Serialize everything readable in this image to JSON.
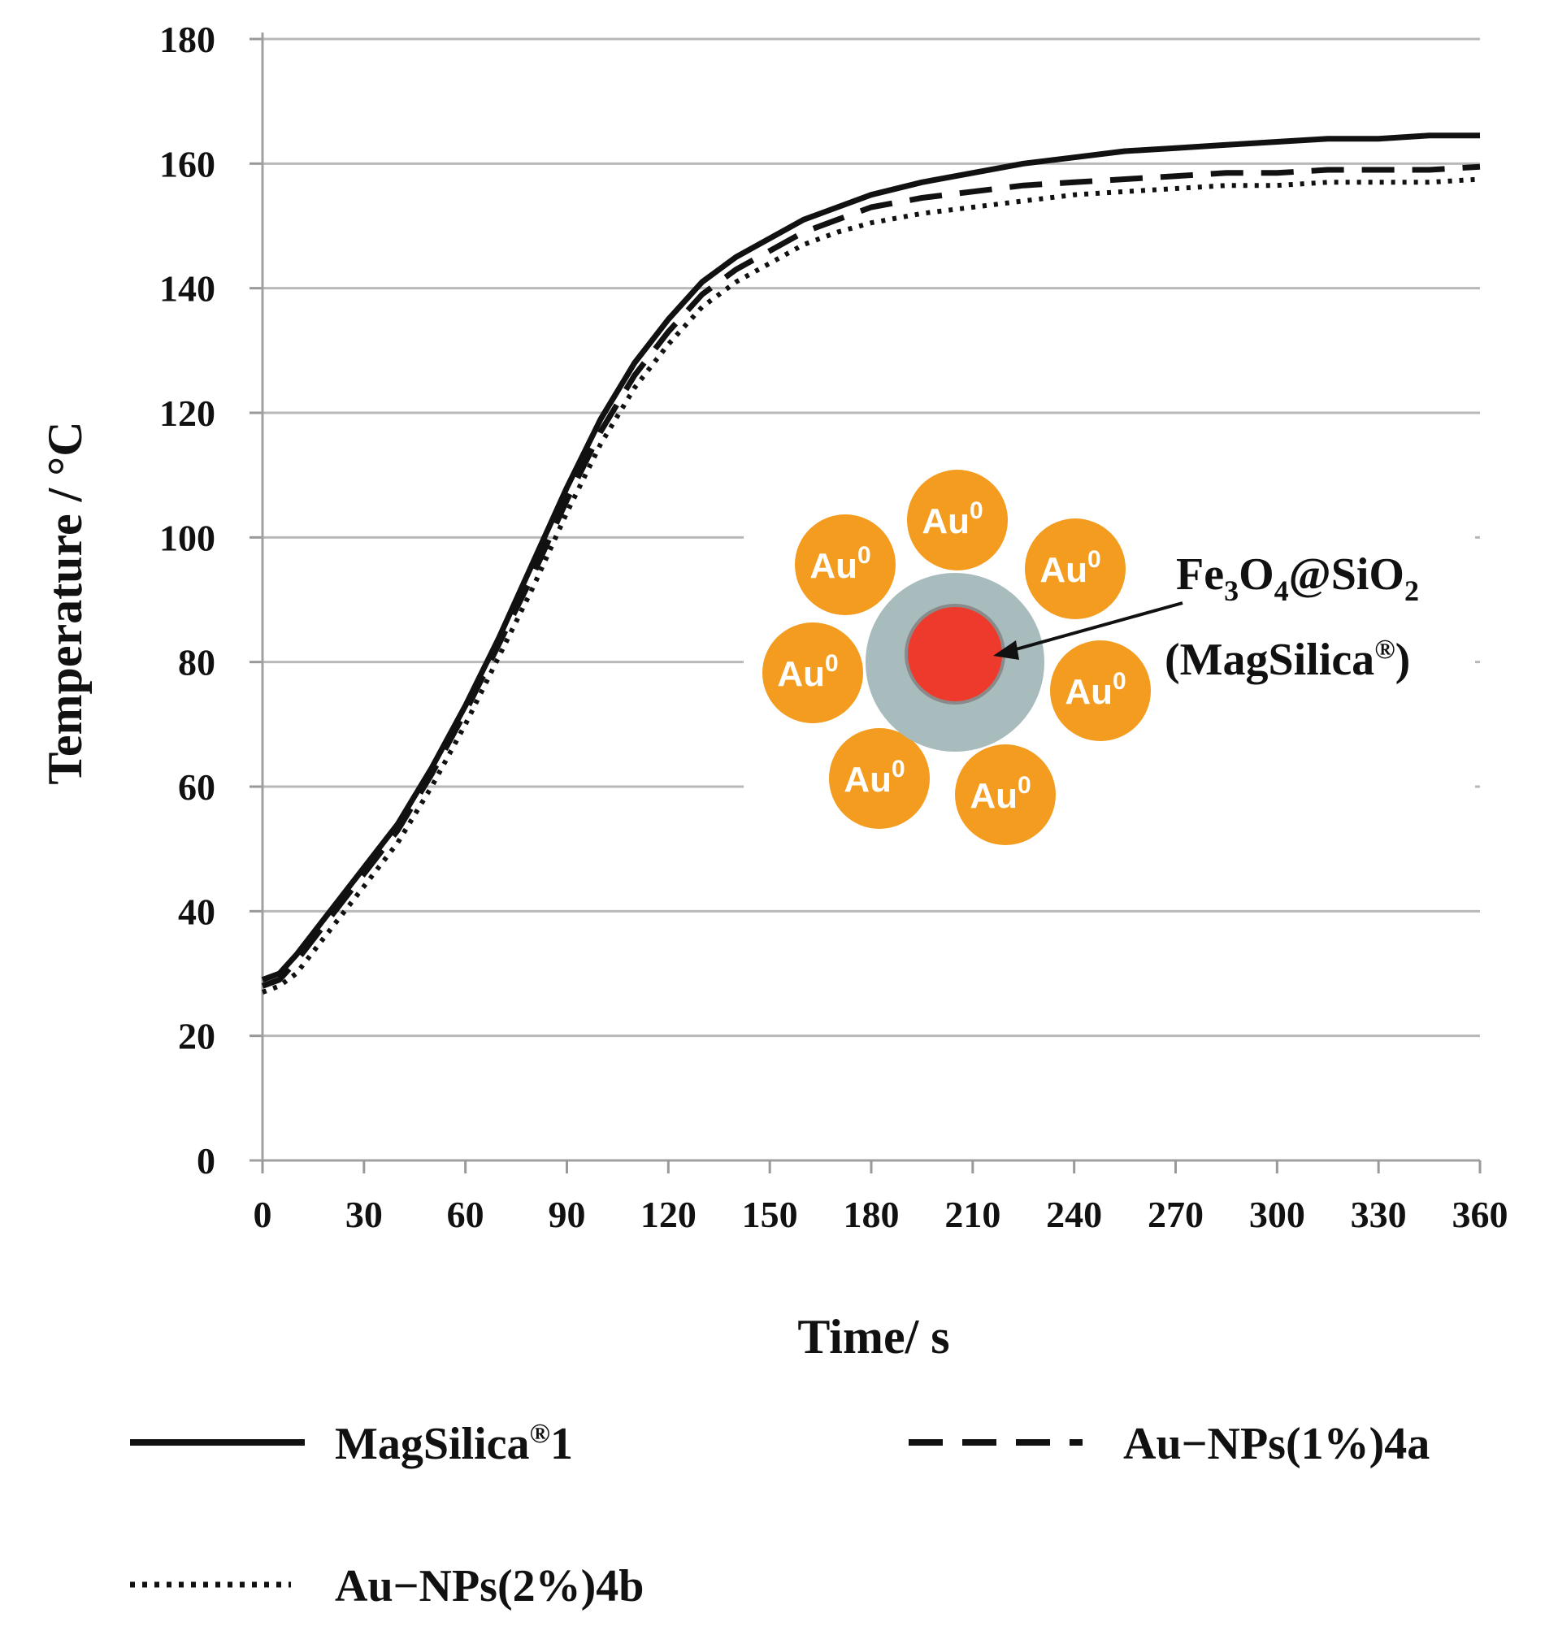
{
  "chart_data": {
    "type": "line",
    "title": "",
    "xlabel": "Time/ s",
    "ylabel": "Temperature / °C",
    "xlim": [
      0,
      360
    ],
    "ylim": [
      0,
      180
    ],
    "x_ticks": [
      0,
      30,
      60,
      90,
      120,
      150,
      180,
      210,
      240,
      270,
      300,
      330,
      360
    ],
    "y_ticks": [
      0,
      20,
      40,
      60,
      80,
      100,
      120,
      140,
      160,
      180
    ],
    "grid": "horizontal",
    "x": [
      0,
      5,
      10,
      20,
      30,
      40,
      50,
      60,
      70,
      80,
      90,
      100,
      110,
      120,
      130,
      140,
      150,
      160,
      170,
      180,
      195,
      210,
      225,
      240,
      255,
      270,
      285,
      300,
      315,
      330,
      345,
      360
    ],
    "series": [
      {
        "name": "MagSilica®1",
        "style": "solid",
        "values": [
          29,
          30,
          33,
          40,
          47,
          54,
          63,
          73,
          84,
          96,
          108,
          119,
          128,
          135,
          141,
          145,
          148,
          151,
          153,
          155,
          157,
          158.5,
          160,
          161,
          162,
          162.5,
          163,
          163.5,
          164,
          164,
          164.5,
          164.5
        ]
      },
      {
        "name": "Au−NPs(1%)4a",
        "style": "dashed",
        "values": [
          28,
          29,
          32,
          39,
          46,
          53,
          62,
          72,
          83,
          94,
          106,
          117,
          126,
          133,
          139,
          143,
          146,
          149,
          151,
          153,
          154.5,
          155.5,
          156.5,
          157,
          157.5,
          158,
          158.5,
          158.5,
          159,
          159,
          159,
          159.5
        ]
      },
      {
        "name": "Au−NPs(2%)4b",
        "style": "dotted",
        "values": [
          27,
          28,
          30,
          37,
          44,
          51,
          60,
          70,
          81,
          92,
          104,
          115,
          124,
          131,
          137,
          141,
          144,
          147,
          149,
          150.5,
          152,
          153,
          154,
          155,
          155.5,
          156,
          156.5,
          156.5,
          157,
          157,
          157,
          157.5
        ]
      }
    ],
    "legend_position": "bottom"
  },
  "inset": {
    "np_label": "Au",
    "np_superscript": "0",
    "core_label_main": "Fe",
    "core_sub1": "3",
    "core_o": "O",
    "core_sub2": "4",
    "core_at": "@SiO",
    "core_sub3": "2",
    "core_label_line2": "(MagSilica",
    "core_label_reg": "®",
    "core_label_close": ")",
    "colors": {
      "gold": "#f39c1f",
      "shell": "#a8bcbe",
      "core": "#ee3a2c"
    }
  }
}
